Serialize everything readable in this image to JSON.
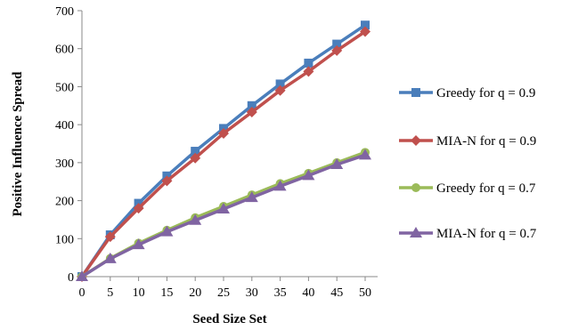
{
  "chart_data": {
    "type": "line",
    "title": "",
    "xlabel": "Seed Size Set",
    "ylabel": "Positive Influence Spread",
    "x": [
      0,
      5,
      10,
      15,
      20,
      25,
      30,
      35,
      40,
      45,
      50
    ],
    "xlim": [
      0,
      50
    ],
    "ylim": [
      0,
      700
    ],
    "xticks": [
      "0",
      "5",
      "10",
      "15",
      "20",
      "25",
      "30",
      "35",
      "40",
      "45",
      "50"
    ],
    "yticks": [
      "0",
      "100",
      "200",
      "300",
      "400",
      "500",
      "600",
      "700"
    ],
    "grid": false,
    "legend_position": "right",
    "series": [
      {
        "name": "Greedy for q = 0.9",
        "color": "#4a7ebb",
        "marker": "square",
        "values": [
          0,
          110,
          193,
          265,
          330,
          390,
          450,
          507,
          562,
          612,
          662
        ]
      },
      {
        "name": "MIA-N for q = 0.9",
        "color": "#c0504d",
        "marker": "diamond",
        "values": [
          0,
          105,
          180,
          252,
          312,
          377,
          433,
          490,
          540,
          595,
          645
        ]
      },
      {
        "name": "Greedy for q = 0.7",
        "color": "#9bbb59",
        "marker": "circle",
        "values": [
          0,
          48,
          88,
          122,
          155,
          185,
          215,
          245,
          272,
          300,
          327
        ]
      },
      {
        "name": "MIA-N for q = 0.7",
        "color": "#8064a2",
        "marker": "triangle",
        "values": [
          0,
          47,
          84,
          118,
          148,
          178,
          208,
          238,
          266,
          295,
          320
        ]
      }
    ]
  }
}
